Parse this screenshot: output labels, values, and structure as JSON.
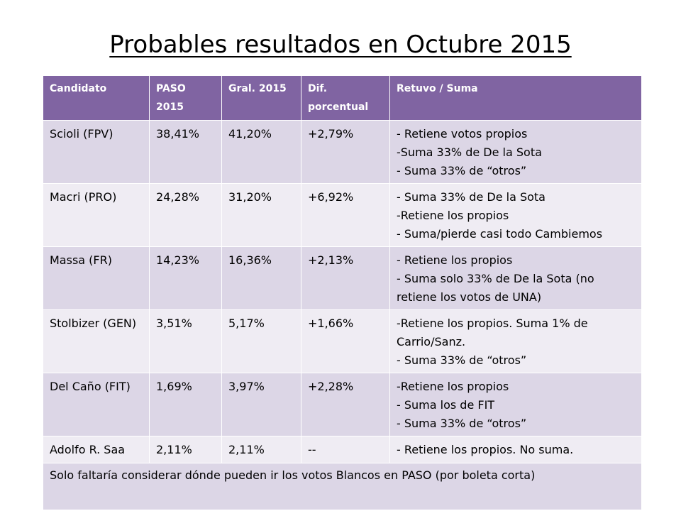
{
  "title": "Probables resultados en Octubre 2015",
  "table": {
    "headers": [
      "Candidato",
      "PASO 2015",
      "Gral. 2015",
      "Dif. porcentual",
      "Retuvo / Suma"
    ],
    "rows": [
      {
        "candidato": "Scioli (FPV)",
        "paso": "38,41%",
        "gral": "41,20%",
        "dif": "+2,79%",
        "retuvo": [
          "- Retiene votos propios",
          "-Suma 33% de De la Sota",
          "- Suma 33% de “otros”"
        ]
      },
      {
        "candidato": "Macri (PRO)",
        "paso": "24,28%",
        "gral": "31,20%",
        "dif": "+6,92%",
        "retuvo": [
          "- Suma 33% de De la Sota",
          "-Retiene los propios",
          "- Suma/pierde casi todo Cambiemos"
        ]
      },
      {
        "candidato": "Massa (FR)",
        "paso": "14,23%",
        "gral": "16,36%",
        "dif": "+2,13%",
        "retuvo": [
          "- Retiene los propios",
          "- Suma solo 33% de De la Sota (no retiene los votos de UNA)"
        ]
      },
      {
        "candidato": "Stolbizer (GEN)",
        "paso": "3,51%",
        "gral": "5,17%",
        "dif": "+1,66%",
        "retuvo": [
          "-Retiene los propios. Suma 1% de Carrio/Sanz.",
          "- Suma 33% de “otros”"
        ]
      },
      {
        "candidato": "Del Caño (FIT)",
        "paso": "1,69%",
        "gral": "3,97%",
        "dif": "+2,28%",
        "retuvo": [
          "-Retiene los propios",
          "- Suma los de FIT",
          "- Suma 33% de “otros”"
        ]
      },
      {
        "candidato": "Adolfo R. Saa",
        "paso": "2,11%",
        "gral": "2,11%",
        "dif": "--",
        "retuvo": [
          "- Retiene los propios. No suma."
        ]
      }
    ],
    "footer": "Solo faltaría considerar dónde pueden ir los votos Blancos en PASO (por boleta corta)"
  },
  "colors": {
    "header": "#8064a2",
    "row_dark": "#dcd6e6",
    "row_light": "#efecf3"
  }
}
